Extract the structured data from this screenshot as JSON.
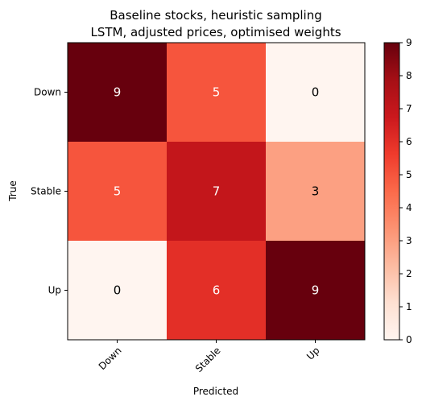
{
  "chart_data": {
    "type": "heatmap",
    "title": [
      "Baseline stocks, heuristic sampling",
      "LSTM, adjusted prices, optimised weights"
    ],
    "xlabel": "Predicted",
    "ylabel": "True",
    "x_categories": [
      "Down",
      "Stable",
      "Up"
    ],
    "y_categories": [
      "Down",
      "Stable",
      "Up"
    ],
    "values": [
      [
        9,
        5,
        0
      ],
      [
        5,
        7,
        3
      ],
      [
        0,
        6,
        9
      ]
    ],
    "colorbar": {
      "min": 0,
      "max": 9,
      "ticks": [
        "0",
        "1",
        "2",
        "3",
        "4",
        "5",
        "6",
        "7",
        "8",
        "9"
      ]
    },
    "colormap": "Reds",
    "colors": {
      "low": "#fff5f0",
      "high": "#67000d",
      "text_dark": "#000000",
      "text_light": "#ffffff"
    }
  }
}
